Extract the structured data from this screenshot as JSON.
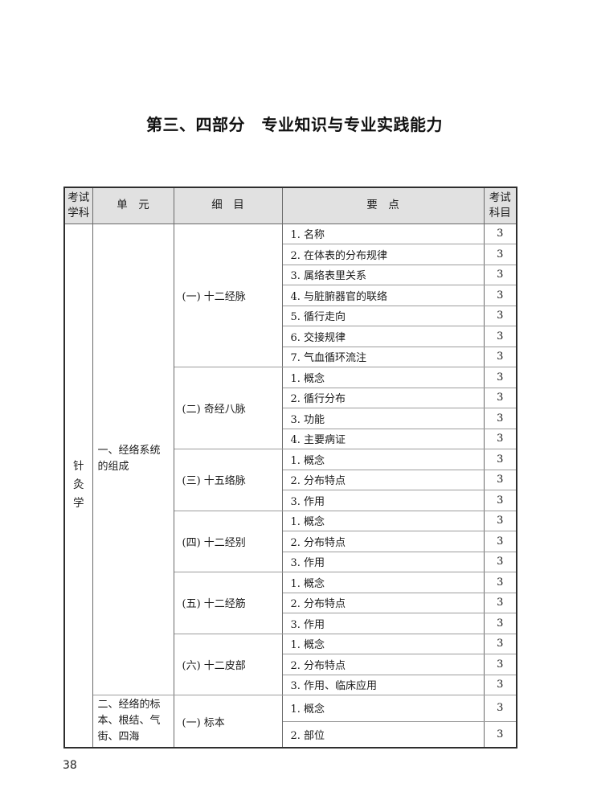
{
  "page": {
    "title": "第三、四部分　专业知识与专业实践能力",
    "page_number": "38"
  },
  "table": {
    "headers": {
      "exam_discipline": "考试学科",
      "unit": "单　元",
      "detail": "细　目",
      "points": "要　点",
      "exam_section": "考试科目"
    },
    "exam_discipline": "针灸学",
    "units": [
      {
        "label": "一、经络系统的组成",
        "groups": [
          {
            "label": "(一) 十二经脉",
            "points": [
              {
                "text": "1. 名称",
                "score": "3"
              },
              {
                "text": "2. 在体表的分布规律",
                "score": "3"
              },
              {
                "text": "3. 属络表里关系",
                "score": "3"
              },
              {
                "text": "4. 与脏腑器官的联络",
                "score": "3"
              },
              {
                "text": "5. 循行走向",
                "score": "3"
              },
              {
                "text": "6. 交接规律",
                "score": "3"
              },
              {
                "text": "7. 气血循环流注",
                "score": "3"
              }
            ]
          },
          {
            "label": "(二) 奇经八脉",
            "points": [
              {
                "text": "1. 概念",
                "score": "3"
              },
              {
                "text": "2. 循行分布",
                "score": "3"
              },
              {
                "text": "3. 功能",
                "score": "3"
              },
              {
                "text": "4. 主要病证",
                "score": "3"
              }
            ]
          },
          {
            "label": "(三) 十五络脉",
            "points": [
              {
                "text": "1. 概念",
                "score": "3"
              },
              {
                "text": "2. 分布特点",
                "score": "3"
              },
              {
                "text": "3. 作用",
                "score": "3"
              }
            ]
          },
          {
            "label": "(四) 十二经别",
            "points": [
              {
                "text": "1. 概念",
                "score": "3"
              },
              {
                "text": "2. 分布特点",
                "score": "3"
              },
              {
                "text": "3. 作用",
                "score": "3"
              }
            ]
          },
          {
            "label": "(五) 十二经筋",
            "points": [
              {
                "text": "1. 概念",
                "score": "3"
              },
              {
                "text": "2. 分布特点",
                "score": "3"
              },
              {
                "text": "3. 作用",
                "score": "3"
              }
            ]
          },
          {
            "label": "(六) 十二皮部",
            "points": [
              {
                "text": "1. 概念",
                "score": "3"
              },
              {
                "text": "2. 分布特点",
                "score": "3"
              },
              {
                "text": "3. 作用、临床应用",
                "score": "3"
              }
            ]
          }
        ]
      },
      {
        "label": "二、经络的标本、根结、气街、四海",
        "groups": [
          {
            "label": "(一) 标本",
            "points": [
              {
                "text": "1. 概念",
                "score": "3"
              },
              {
                "text": "2. 部位",
                "score": "3"
              }
            ]
          }
        ]
      }
    ]
  }
}
